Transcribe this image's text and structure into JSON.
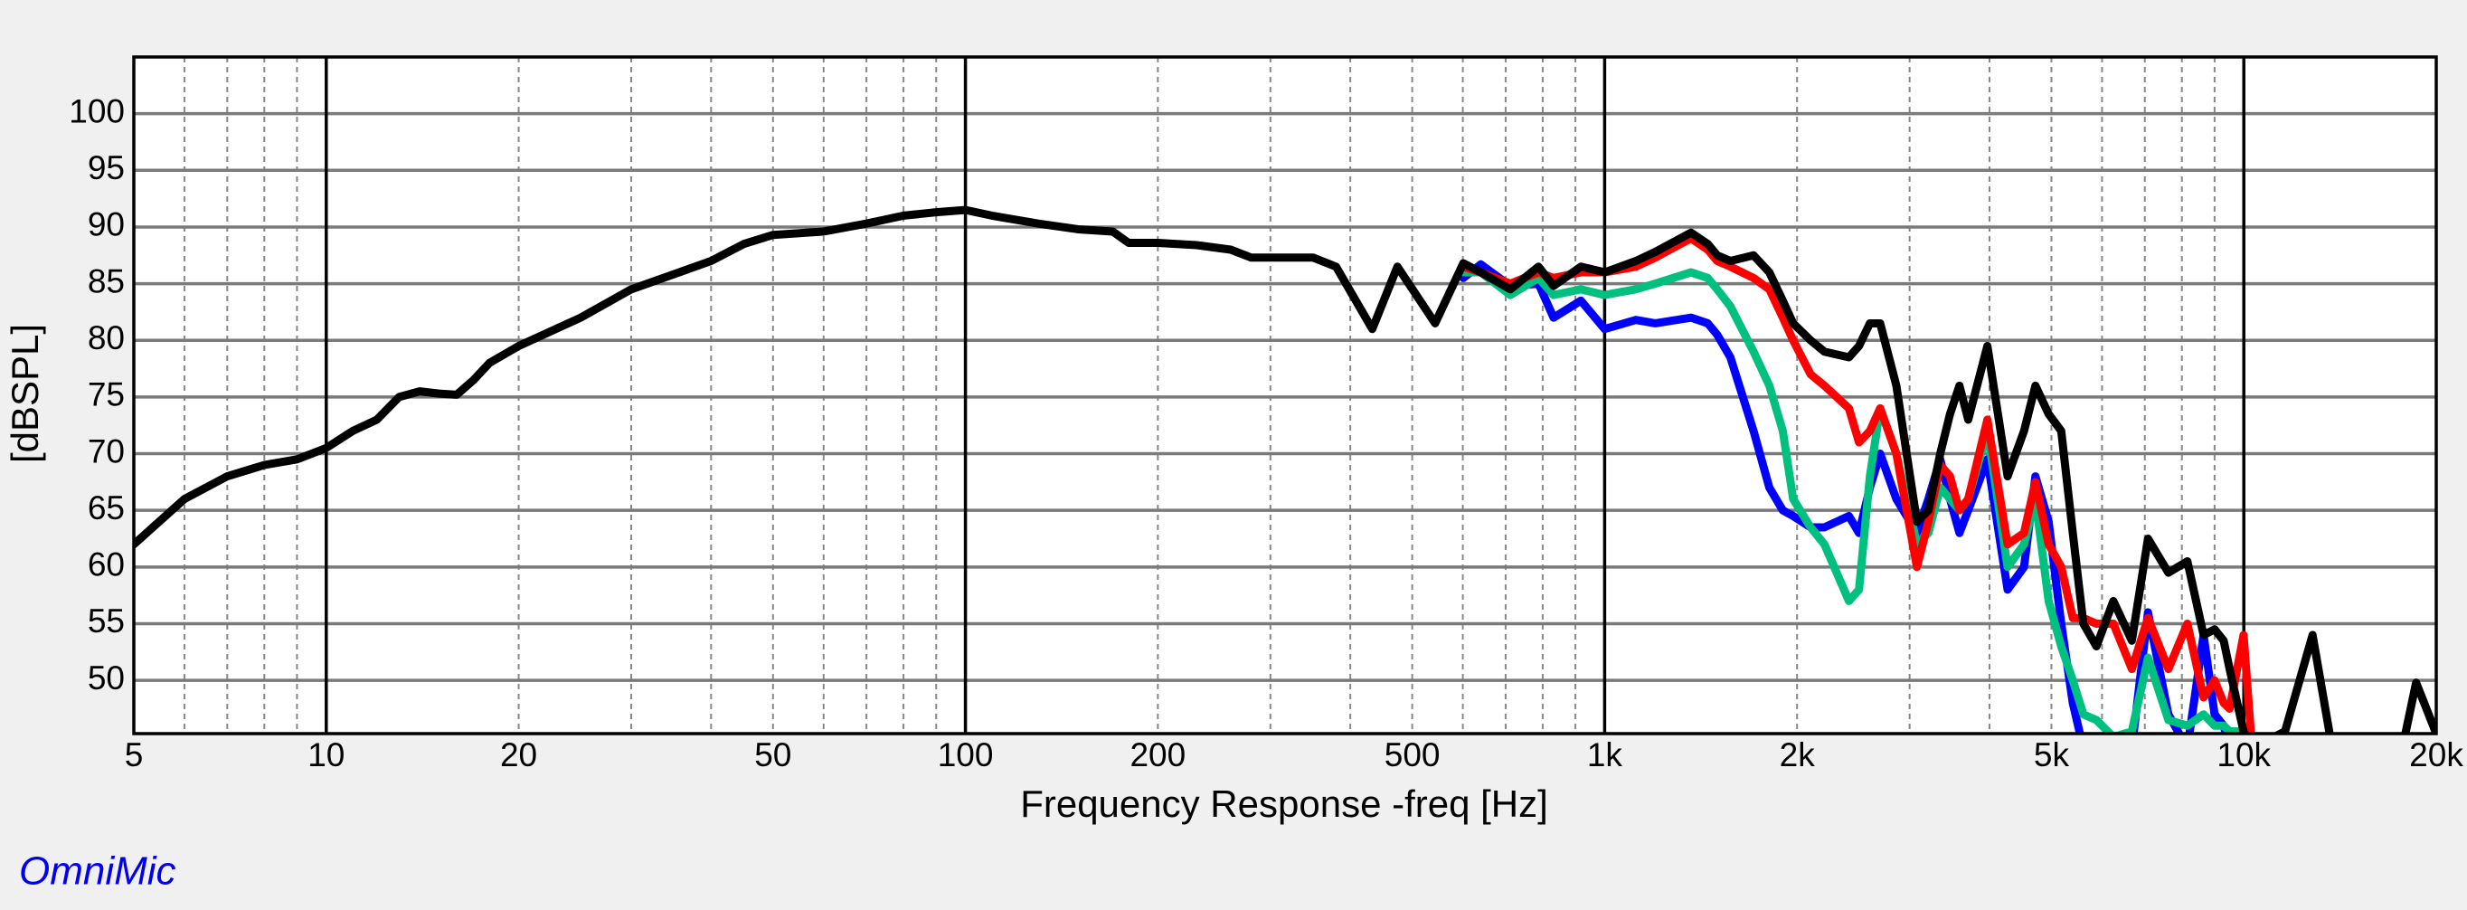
{
  "chart_data": {
    "type": "line",
    "xlabel": "Frequency Response -freq [Hz]",
    "ylabel": "[dBSPL]",
    "annotation": "OmniMic",
    "xscale": "log",
    "xlim": [
      5,
      20000
    ],
    "ylim": [
      45.3,
      105
    ],
    "xticks": [
      5,
      10,
      20,
      50,
      100,
      200,
      500,
      {
        "value": 1000,
        "label": "1k"
      },
      {
        "value": 2000,
        "label": "2k"
      },
      {
        "value": 5000,
        "label": "5k"
      },
      {
        "value": 10000,
        "label": "10k"
      },
      {
        "value": 20000,
        "label": "20k"
      }
    ],
    "yticks": [
      50,
      55,
      60,
      65,
      70,
      75,
      80,
      85,
      90,
      95,
      100
    ],
    "grid": true,
    "xgrid_major": [
      10,
      100,
      1000,
      10000
    ],
    "xgrid_minor": [
      6,
      7,
      8,
      9,
      20,
      30,
      40,
      50,
      60,
      70,
      80,
      90,
      200,
      300,
      400,
      500,
      600,
      700,
      800,
      900,
      2000,
      3000,
      4000,
      5000,
      6000,
      7000,
      8000,
      9000
    ],
    "x": [
      5,
      6,
      7,
      8,
      9,
      10,
      11,
      12,
      13,
      14,
      15,
      16,
      17,
      18,
      20,
      25,
      30,
      40,
      45,
      50,
      60,
      70,
      80,
      90,
      100,
      110,
      130,
      150,
      170,
      180,
      200,
      230,
      260,
      280,
      350,
      380,
      433,
      474,
      543,
      601,
      640,
      712,
      788,
      832,
      918,
      1000,
      1119,
      1200,
      1365,
      1450,
      1500,
      1573,
      1710,
      1810,
      1900,
      1972,
      2100,
      2207,
      2411,
      2500,
      2600,
      2698,
      2860,
      3080,
      3210,
      3350,
      3470,
      3590,
      3705,
      3970,
      4270,
      4530,
      4720,
      4950,
      5180,
      5400,
      5610,
      5880,
      6250,
      6680,
      7080,
      7620,
      8160,
      8650,
      9000,
      9300,
      9500,
      9990,
      10300,
      11600,
      12810,
      13650,
      17850,
      18600,
      20000
    ],
    "series": [
      {
        "color": "#0000ff",
        "values": [
          null,
          null,
          null,
          null,
          null,
          null,
          null,
          null,
          null,
          null,
          null,
          null,
          null,
          null,
          null,
          null,
          null,
          null,
          null,
          null,
          null,
          null,
          null,
          null,
          null,
          null,
          null,
          null,
          null,
          null,
          null,
          null,
          null,
          null,
          null,
          null,
          null,
          null,
          null,
          85.5,
          86.7,
          84.8,
          85,
          82,
          83.5,
          81,
          81.8,
          81.5,
          82,
          81.5,
          80.5,
          78.5,
          72,
          67,
          65,
          64.5,
          63.5,
          63.5,
          64.5,
          63,
          67,
          70,
          66,
          63,
          66,
          69.5,
          66,
          63,
          65,
          69.5,
          58,
          60,
          68,
          64,
          55,
          48,
          44,
          42,
          42,
          44,
          56,
          47,
          44,
          54,
          47,
          46,
          44,
          44,
          43,
          null,
          null,
          null,
          null,
          null,
          null
        ]
      },
      {
        "color": "#00c080",
        "values": [
          null,
          null,
          null,
          null,
          null,
          null,
          null,
          null,
          null,
          null,
          null,
          null,
          null,
          null,
          null,
          null,
          null,
          null,
          null,
          null,
          null,
          null,
          null,
          null,
          null,
          null,
          null,
          null,
          null,
          null,
          null,
          null,
          null,
          null,
          null,
          null,
          null,
          null,
          null,
          86,
          86,
          84,
          85.5,
          84,
          84.5,
          84,
          84.5,
          85,
          86,
          85.5,
          84.5,
          83,
          79,
          76,
          72,
          66,
          63.5,
          62,
          57,
          58,
          68,
          74,
          70,
          62,
          63,
          67,
          66,
          65,
          66,
          72,
          60,
          62,
          66,
          57,
          53,
          50,
          47,
          46.5,
          45,
          45.5,
          52,
          46.5,
          46,
          47,
          46,
          46,
          45.5,
          45.5,
          44,
          null,
          null,
          null,
          null,
          null,
          null
        ]
      },
      {
        "color": "#ff0000",
        "values": [
          null,
          null,
          null,
          null,
          null,
          null,
          null,
          null,
          null,
          null,
          null,
          null,
          null,
          null,
          null,
          null,
          null,
          null,
          null,
          null,
          null,
          null,
          null,
          null,
          null,
          null,
          null,
          null,
          null,
          null,
          null,
          null,
          null,
          null,
          null,
          null,
          null,
          null,
          null,
          86.5,
          86,
          85,
          86,
          85.5,
          86,
          86,
          86.5,
          87.3,
          89,
          88,
          87,
          86.5,
          85.5,
          84.5,
          82,
          80,
          77,
          76,
          74,
          71,
          72,
          74,
          70,
          60,
          64,
          69,
          68,
          65,
          66,
          73,
          62,
          63,
          67.5,
          62,
          60,
          55.5,
          55.5,
          55,
          55,
          51,
          55.5,
          51,
          55,
          48.5,
          50,
          48,
          47.5,
          54,
          44,
          null,
          null,
          null,
          null,
          null,
          null
        ]
      },
      {
        "color": "#000000",
        "values": [
          62,
          66,
          68,
          69,
          69.5,
          70.5,
          72,
          73,
          75,
          75.5,
          75.3,
          75.2,
          76.5,
          78,
          79.5,
          82,
          84.5,
          87,
          88.5,
          89.3,
          89.6,
          90.3,
          91,
          91.3,
          91.5,
          91,
          90.3,
          89.8,
          89.6,
          88.6,
          88.6,
          88.4,
          88,
          87.3,
          87.3,
          86.5,
          81,
          86.5,
          81.5,
          86.8,
          86,
          84.5,
          86.5,
          84.8,
          86.5,
          86,
          87,
          87.8,
          89.5,
          88.5,
          87.5,
          87,
          87.5,
          86,
          83.5,
          81.5,
          80,
          79,
          78.5,
          79.5,
          81.5,
          81.5,
          76,
          64,
          65,
          70,
          73.5,
          76,
          73,
          79.5,
          68,
          72,
          76,
          73.5,
          72,
          63,
          55,
          53,
          57,
          53.5,
          62.5,
          59.5,
          60.5,
          54,
          54.5,
          53.5,
          51,
          45.5,
          44,
          45.5,
          54,
          45,
          45,
          49.8,
          45.3
        ]
      }
    ]
  }
}
